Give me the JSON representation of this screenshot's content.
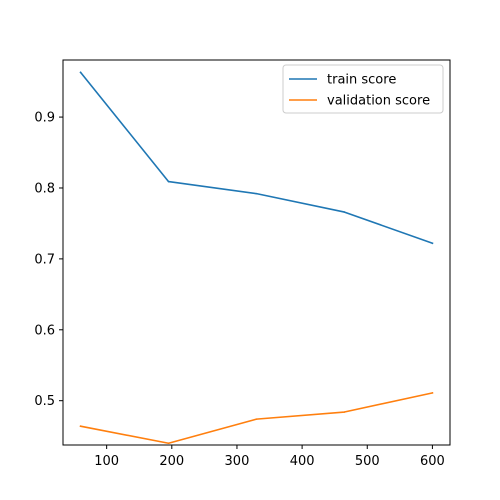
{
  "chart_data": {
    "type": "line",
    "title": "",
    "xlabel": "",
    "ylabel": "",
    "x": [
      60,
      195,
      330,
      465,
      600
    ],
    "xlim": [
      33,
      627
    ],
    "ylim": [
      0.4375,
      0.9805
    ],
    "xticks": [
      100,
      200,
      300,
      400,
      500,
      600
    ],
    "xtick_labels": [
      "100",
      "200",
      "300",
      "400",
      "500",
      "600"
    ],
    "yticks": [
      0.5,
      0.6,
      0.7,
      0.8,
      0.9
    ],
    "ytick_labels": [
      "0.5",
      "0.6",
      "0.7",
      "0.8",
      "0.9"
    ],
    "grid": false,
    "legend_position": "top-right",
    "series": [
      {
        "name": "train score",
        "color": "#1f77b4",
        "values": [
          0.963,
          0.809,
          0.792,
          0.766,
          0.722
        ]
      },
      {
        "name": "validation score",
        "color": "#ff7f0e",
        "values": [
          0.464,
          0.44,
          0.474,
          0.484,
          0.511
        ]
      }
    ]
  }
}
